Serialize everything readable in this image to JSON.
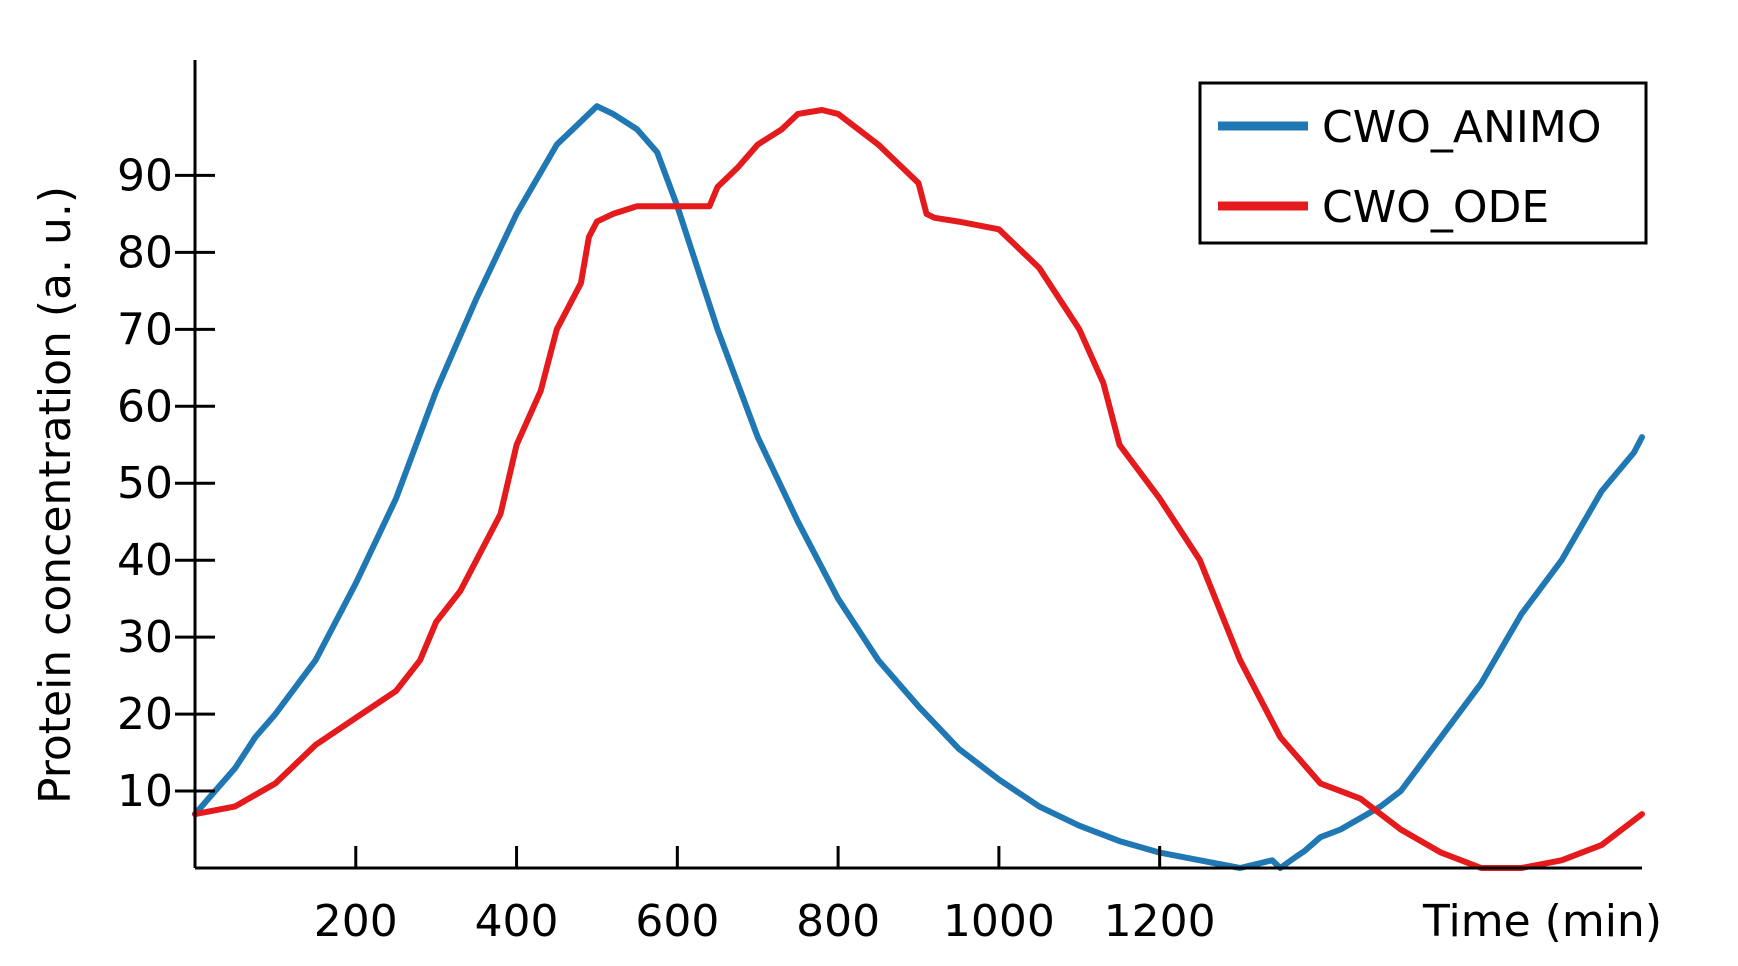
{
  "chart_data": {
    "type": "line",
    "title": "",
    "xlabel": "Time (min)",
    "ylabel": "Protein concentration (a. u.)",
    "xlim": [
      0,
      1800
    ],
    "ylim": [
      0,
      105
    ],
    "xticks": [
      200,
      400,
      600,
      800,
      1000,
      1200
    ],
    "yticks": [
      10,
      20,
      30,
      40,
      50,
      60,
      70,
      80,
      90
    ],
    "legend_position": "top-right",
    "series": [
      {
        "name": "CWO_ANIMO",
        "color": "#1f77b4",
        "x": [
          0,
          25,
          50,
          75,
          100,
          150,
          200,
          250,
          300,
          350,
          400,
          450,
          480,
          500,
          520,
          550,
          575,
          600,
          625,
          650,
          700,
          750,
          800,
          850,
          900,
          950,
          1000,
          1050,
          1100,
          1150,
          1200,
          1250,
          1300,
          1320,
          1340,
          1350,
          1370,
          1380,
          1400,
          1425,
          1450,
          1475,
          1500,
          1550,
          1600,
          1650,
          1700,
          1750,
          1790,
          1800
        ],
        "y": [
          7,
          10,
          13,
          17,
          20,
          27,
          37,
          48,
          62,
          74,
          85,
          94,
          97,
          99,
          98,
          96,
          93,
          86,
          78,
          70,
          56,
          45,
          35,
          27,
          21,
          15.5,
          11.5,
          8,
          5.5,
          3.5,
          2,
          1,
          0,
          0.5,
          1,
          0,
          1.5,
          2.2,
          4,
          5,
          6.5,
          8,
          10,
          17,
          24,
          33,
          40,
          49,
          54,
          56
        ]
      },
      {
        "name": "CWO_ODE",
        "color": "#e41a1c",
        "x": [
          0,
          25,
          50,
          75,
          100,
          150,
          200,
          250,
          280,
          300,
          330,
          350,
          380,
          400,
          430,
          450,
          480,
          490,
          500,
          520,
          550,
          600,
          640,
          650,
          675,
          700,
          730,
          750,
          780,
          800,
          850,
          900,
          910,
          920,
          950,
          1000,
          1050,
          1100,
          1130,
          1150,
          1200,
          1250,
          1300,
          1350,
          1400,
          1450,
          1500,
          1550,
          1600,
          1650,
          1700,
          1750,
          1800
        ],
        "y": [
          7,
          7.5,
          8,
          9.5,
          11,
          16,
          19.5,
          23,
          27,
          32,
          36,
          40,
          46,
          55,
          62,
          70,
          76,
          82,
          84,
          85,
          86,
          86,
          86,
          88.5,
          91,
          94,
          96,
          98,
          98.5,
          98,
          94,
          89,
          85,
          84.5,
          84,
          83,
          78,
          70,
          63,
          55,
          48,
          40,
          27,
          17,
          11,
          9,
          5,
          2,
          0,
          0,
          1,
          3,
          7
        ]
      }
    ]
  }
}
